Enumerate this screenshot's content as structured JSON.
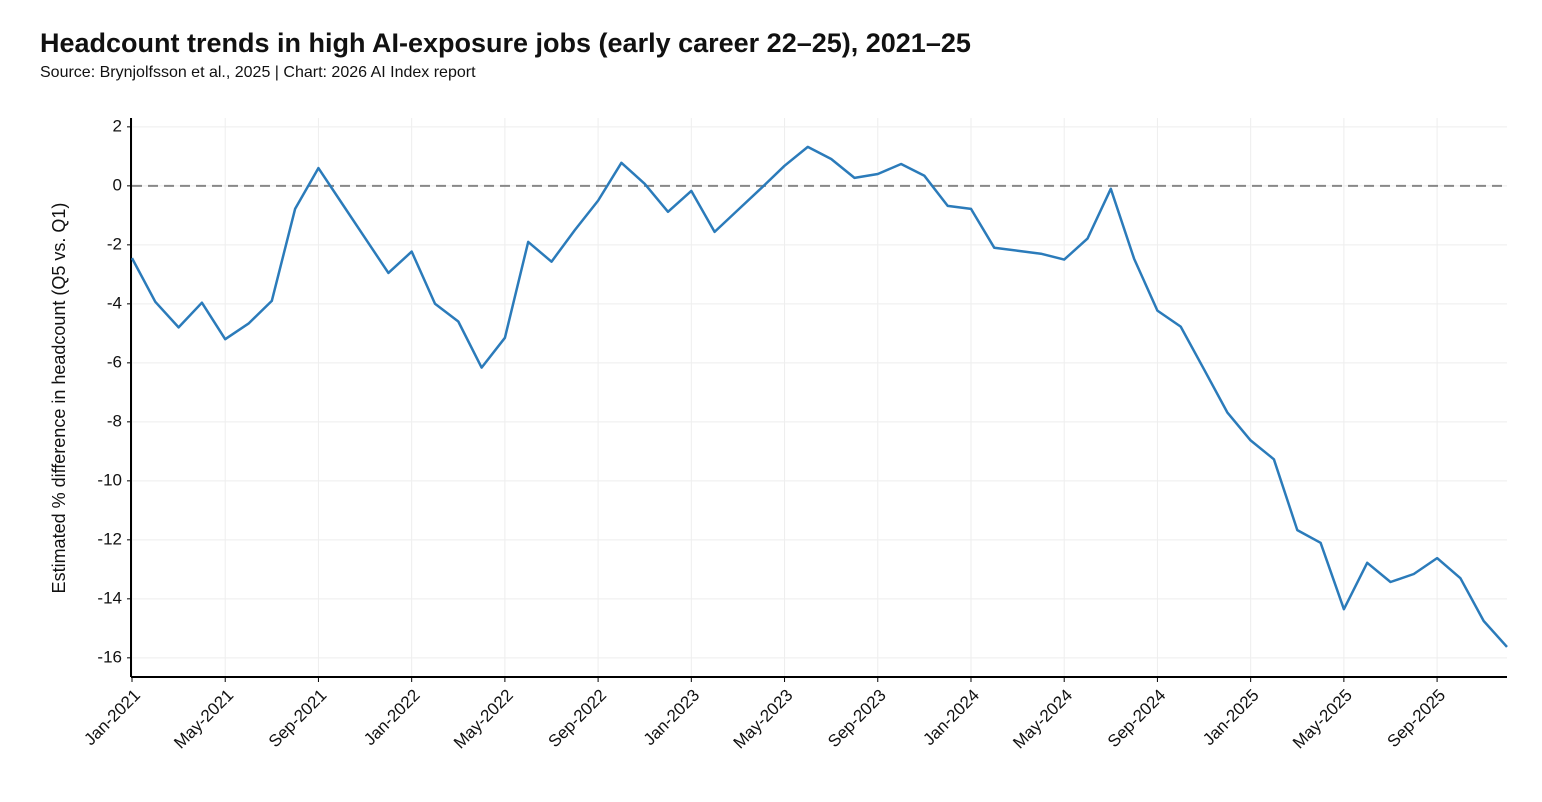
{
  "chart_data": {
    "type": "line",
    "title": "Headcount trends in high AI-exposure jobs (early career 22–25), 2021–25",
    "subtitle": "Source: Brynjolfsson et al., 2025 | Chart: 2026 AI Index report",
    "y_label": "Estimated % difference in headcount (Q5 vs. Q1)",
    "categories": [
      "Jan-2021",
      null,
      null,
      null,
      "May-2021",
      null,
      null,
      null,
      "Sep-2021",
      null,
      null,
      null,
      "Jan-2022",
      null,
      null,
      null,
      "May-2022",
      null,
      null,
      null,
      "Sep-2022",
      null,
      null,
      null,
      "Jan-2023",
      null,
      null,
      null,
      "May-2023",
      null,
      null,
      null,
      "Sep-2023",
      null,
      null,
      null,
      "Jan-2024",
      null,
      null,
      null,
      "May-2024",
      null,
      null,
      null,
      "Sep-2024",
      null,
      null,
      null,
      "Jan-2025",
      null,
      null,
      null,
      "May-2025",
      null,
      null,
      null,
      "Sep-2025",
      null,
      null,
      null
    ],
    "series": [
      {
        "name": "Q5 vs. Q1",
        "color": "#2b7bba",
        "values": [
          -2.45,
          -3.93,
          -4.8,
          -3.96,
          -5.2,
          -4.67,
          -3.9,
          -0.78,
          0.6,
          -0.58,
          -1.77,
          -2.95,
          -2.23,
          -4.0,
          -4.6,
          -6.16,
          -5.15,
          -1.9,
          -2.57,
          -1.5,
          -0.5,
          0.78,
          0.07,
          -0.88,
          -0.17,
          -1.56,
          -0.82,
          -0.08,
          0.68,
          1.32,
          0.91,
          0.27,
          0.4,
          0.74,
          0.34,
          -0.68,
          -0.78,
          -2.1,
          -2.2,
          -2.3,
          -2.5,
          -1.79,
          -0.1,
          -2.47,
          -4.23,
          -4.77,
          -6.22,
          -7.68,
          -8.63,
          -9.27,
          -11.67,
          -12.1,
          -14.35,
          -12.78,
          -13.43,
          -13.16,
          -12.62,
          -13.3,
          -14.75,
          -15.63
        ]
      }
    ],
    "ylim": [
      -16.65,
      2.3
    ],
    "yticks": [
      -16,
      -14,
      -12,
      -10,
      -8,
      -6,
      -4,
      -2,
      0,
      2
    ],
    "reference_line": 0,
    "grid": true
  }
}
